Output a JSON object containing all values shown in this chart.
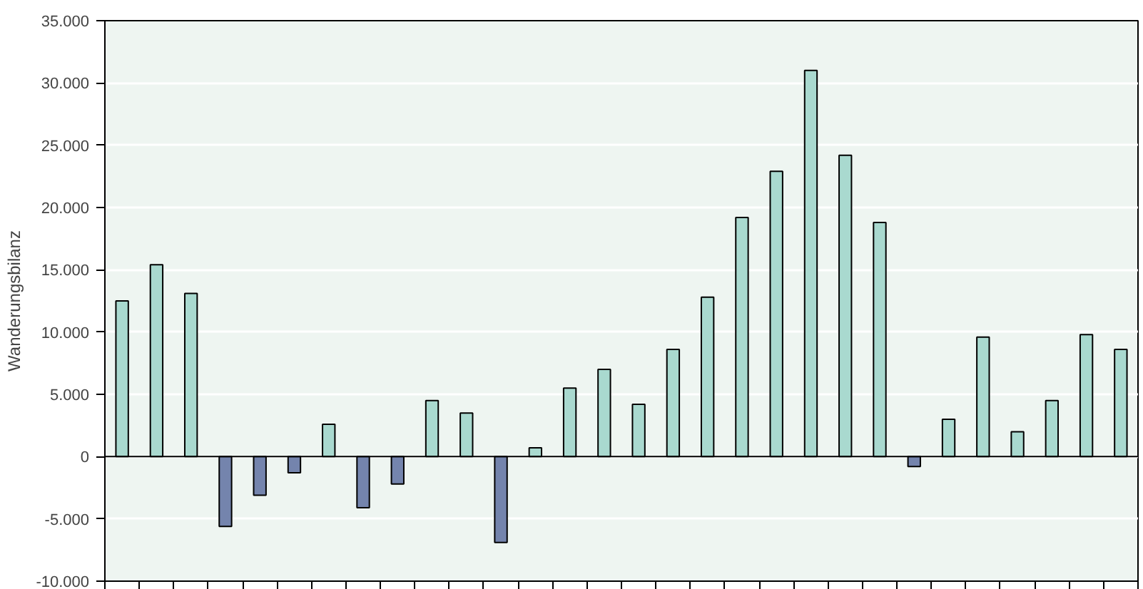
{
  "chart_data": {
    "type": "bar",
    "ylabel": "Wanderungsbilanz",
    "categories": [
      null,
      null,
      null,
      null,
      null,
      null,
      null,
      null,
      null,
      null,
      null,
      null,
      null,
      null,
      null,
      null,
      null,
      null,
      null,
      null,
      null,
      null,
      null,
      null,
      null,
      null,
      null,
      null,
      null,
      null
    ],
    "values": [
      12500,
      15400,
      13100,
      -5600,
      -3100,
      -1300,
      2600,
      -4100,
      -2200,
      4500,
      3500,
      -6900,
      700,
      5500,
      7000,
      4200,
      8600,
      12800,
      19200,
      22900,
      31000,
      24200,
      18800,
      -800,
      3000,
      9600,
      2000,
      4500,
      9800,
      8600
    ],
    "colors": [
      "#a9d9cf",
      "#a9d9cf",
      "#a9d9cf",
      "#7484ad",
      "#7484ad",
      "#7484ad",
      "#a9d9cf",
      "#7484ad",
      "#7484ad",
      "#a9d9cf",
      "#a9d9cf",
      "#7484ad",
      "#a9d9cf",
      "#a9d9cf",
      "#a9d9cf",
      "#a9d9cf",
      "#a9d9cf",
      "#a9d9cf",
      "#a9d9cf",
      "#a9d9cf",
      "#a9d9cf",
      "#a9d9cf",
      "#a9d9cf",
      "#7484ad",
      "#a9d9cf",
      "#a9d9cf",
      "#a9d9cf",
      "#a9d9cf",
      "#a9d9cf",
      "#a9d9cf"
    ],
    "ylim": [
      -10000,
      35000
    ],
    "yticks": [
      {
        "value": -10000,
        "label": "-10.000"
      },
      {
        "value": -5000,
        "label": "-5.000"
      },
      {
        "value": 0,
        "label": "0"
      },
      {
        "value": 5000,
        "label": "5.000"
      },
      {
        "value": 10000,
        "label": "10.000"
      },
      {
        "value": 15000,
        "label": "15.000"
      },
      {
        "value": 20000,
        "label": "20.000"
      },
      {
        "value": 25000,
        "label": "25.000"
      },
      {
        "value": 30000,
        "label": "30.000"
      },
      {
        "value": 35000,
        "label": "35.000"
      }
    ],
    "ref_lines": [
      {
        "axis": "y",
        "value": 0,
        "color": "#000000"
      }
    ],
    "grid": "y",
    "tick_labels": "y"
  }
}
